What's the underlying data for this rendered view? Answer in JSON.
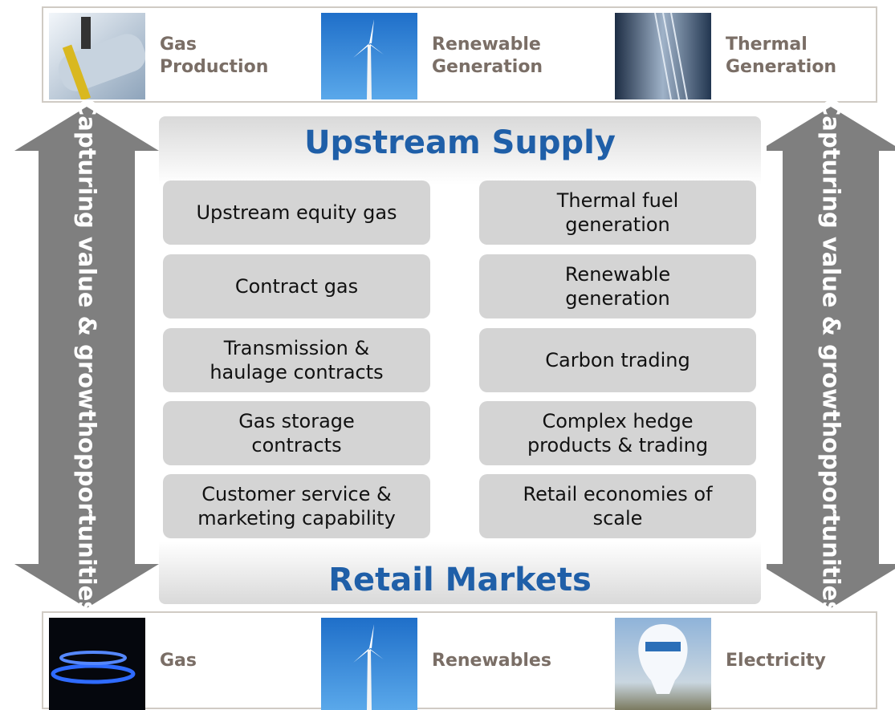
{
  "header": {
    "items": [
      "Gas\nProduction",
      "Renewable\nGeneration",
      "Thermal\nGeneration"
    ]
  },
  "arrows": {
    "left": [
      "Capturing value & growth",
      "opportunities"
    ],
    "right": [
      "Capturing value & growth",
      "opportunities"
    ]
  },
  "panel": {
    "top_title": "Upstream Supply",
    "bottom_title": "Retail Markets",
    "left": [
      "Upstream equity gas",
      "Contract gas",
      "Transmission &\nhaulage contracts",
      "Gas storage\ncontracts",
      "Customer service &\nmarketing capability"
    ],
    "right": [
      "Thermal fuel\ngeneration",
      "Renewable\ngeneration",
      "Carbon trading",
      "Complex hedge\nproducts & trading",
      "Retail economies of\nscale"
    ]
  },
  "footer": {
    "items": [
      "Gas",
      "Renewables",
      "Electricity"
    ]
  }
}
